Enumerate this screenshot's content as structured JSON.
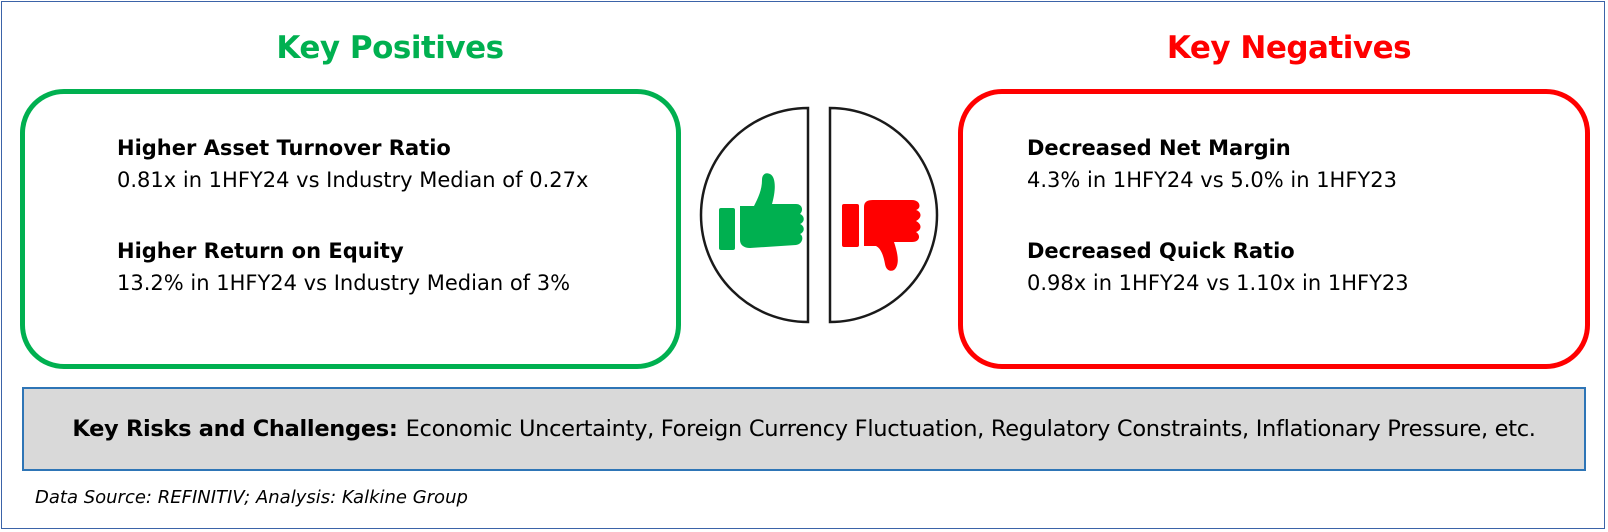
{
  "positives": {
    "heading": "Key Positives",
    "items": [
      {
        "title": "Higher Asset Turnover Ratio",
        "detail": "0.81x in 1HFY24 vs Industry Median of 0.27x"
      },
      {
        "title": "Higher Return on Equity",
        "detail": "13.2% in 1HFY24 vs Industry Median of 3%"
      }
    ]
  },
  "negatives": {
    "heading": "Key Negatives",
    "items": [
      {
        "title": "Decreased Net Margin",
        "detail": "4.3% in 1HFY24 vs 5.0% in 1HFY23"
      },
      {
        "title": "Decreased Quick Ratio",
        "detail": "0.98x in 1HFY24 vs 1.10x in 1HFY23"
      }
    ]
  },
  "risks": {
    "label": "Key Risks and Challenges:",
    "text": "Economic Uncertainty, Foreign Currency Fluctuation, Regulatory Constraints, Inflationary Pressure, etc."
  },
  "source": "Data Source: REFINITIV; Analysis: Kalkine Group",
  "colors": {
    "positive": "#00b050",
    "negative": "#ff0000",
    "risk_bg": "#d9d9d9",
    "risk_border": "#2e75b6",
    "frame_border": "#3b63a8"
  },
  "icons": [
    "thumbs-up-icon",
    "thumbs-down-icon"
  ]
}
